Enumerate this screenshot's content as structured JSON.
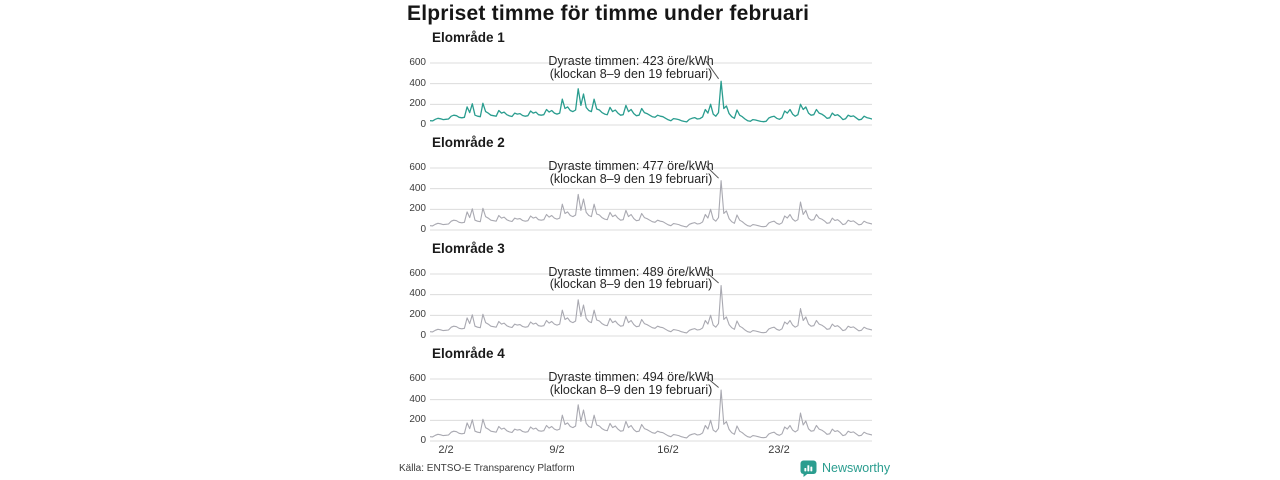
{
  "title": "Elpriset timme för timme under februari",
  "source": "Källa: ENTSO-E Transparency Platform",
  "brand": {
    "name": "Newsworthy",
    "color": "#2a9d8f"
  },
  "colors": {
    "background": "#ffffff",
    "teal_line": "#2a9d8f",
    "gray_line": "#a9a9b1",
    "grid": "#dcdcdc",
    "text": "#1a1a1a",
    "annotation_pointer": "#555555"
  },
  "axis": {
    "y_ticks": [
      "600",
      "400",
      "200",
      "0"
    ],
    "x_ticks": [
      "2/2",
      "9/2",
      "16/2",
      "23/2"
    ],
    "ylim": [
      0,
      600
    ],
    "x_range": "1 februari – 28 februari, timvärden",
    "grid": "horizontal only",
    "unit": "öre/kWh"
  },
  "chart_data": [
    {
      "type": "line",
      "name": "Elområde 1",
      "color": "#2a9d8f",
      "stroke_width": 1.3,
      "annotation_line1": "Dyraste timmen: 423 öre/kWh",
      "annotation_line2": "(klockan 8–9 den 19 februari)",
      "max_value": 423,
      "max_time": "klockan 8–9 den 19 februari",
      "unit": "öre/kWh",
      "sampling": "6 values per day (00,04,08,12,16,20), Feb 1–28",
      "values": [
        42,
        40,
        55,
        65,
        60,
        52,
        55,
        58,
        85,
        95,
        90,
        75,
        70,
        75,
        175,
        120,
        205,
        95,
        85,
        80,
        210,
        130,
        115,
        95,
        90,
        85,
        140,
        115,
        125,
        100,
        88,
        82,
        115,
        105,
        110,
        92,
        85,
        90,
        135,
        115,
        125,
        100,
        95,
        100,
        150,
        125,
        140,
        115,
        105,
        115,
        250,
        160,
        175,
        140,
        130,
        145,
        350,
        190,
        300,
        170,
        140,
        130,
        250,
        155,
        145,
        120,
        105,
        100,
        170,
        130,
        145,
        115,
        95,
        100,
        190,
        130,
        150,
        110,
        90,
        95,
        160,
        120,
        110,
        95,
        80,
        75,
        95,
        85,
        80,
        65,
        50,
        42,
        62,
        58,
        52,
        42,
        35,
        30,
        55,
        65,
        72,
        58,
        62,
        78,
        150,
        115,
        200,
        105,
        85,
        120,
        423,
        160,
        185,
        110,
        80,
        65,
        145,
        95,
        80,
        58,
        42,
        36,
        52,
        48,
        42,
        35,
        32,
        36,
        68,
        78,
        85,
        65,
        55,
        70,
        135,
        115,
        150,
        105,
        85,
        100,
        200,
        150,
        175,
        115,
        95,
        100,
        150,
        115,
        105,
        88,
        65,
        70,
        115,
        92,
        100,
        80,
        52,
        60,
        95,
        82,
        88,
        70,
        50,
        55,
        85,
        72,
        65,
        58
      ]
    },
    {
      "type": "line",
      "name": "Elområde 2",
      "color": "#a9a9b1",
      "stroke_width": 1.1,
      "annotation_line1": "Dyraste timmen: 477 öre/kWh",
      "annotation_line2": "(klockan 8–9 den 19 februari)",
      "max_value": 477,
      "max_time": "klockan 8–9 den 19 februari",
      "unit": "öre/kWh",
      "sampling": "6 values per day (00,04,08,12,16,20), Feb 1–28",
      "values": [
        42,
        40,
        55,
        65,
        60,
        52,
        55,
        58,
        85,
        95,
        90,
        75,
        70,
        75,
        175,
        120,
        205,
        95,
        85,
        80,
        210,
        130,
        115,
        95,
        90,
        85,
        140,
        115,
        125,
        100,
        88,
        82,
        115,
        105,
        110,
        92,
        85,
        90,
        135,
        115,
        125,
        100,
        95,
        100,
        150,
        125,
        140,
        115,
        105,
        115,
        250,
        160,
        175,
        140,
        130,
        145,
        345,
        190,
        300,
        170,
        140,
        130,
        250,
        155,
        145,
        120,
        105,
        100,
        170,
        130,
        145,
        115,
        95,
        100,
        190,
        130,
        150,
        110,
        90,
        95,
        160,
        120,
        110,
        95,
        80,
        75,
        95,
        85,
        80,
        65,
        50,
        42,
        62,
        58,
        52,
        42,
        35,
        30,
        55,
        65,
        72,
        58,
        62,
        78,
        150,
        115,
        200,
        105,
        85,
        120,
        477,
        160,
        185,
        110,
        80,
        65,
        145,
        95,
        80,
        58,
        42,
        36,
        52,
        48,
        42,
        35,
        32,
        36,
        68,
        78,
        85,
        65,
        55,
        70,
        135,
        115,
        150,
        105,
        85,
        100,
        270,
        150,
        190,
        115,
        95,
        100,
        150,
        115,
        105,
        88,
        65,
        70,
        115,
        92,
        100,
        80,
        52,
        60,
        95,
        82,
        88,
        70,
        50,
        55,
        85,
        72,
        65,
        58
      ]
    },
    {
      "type": "line",
      "name": "Elområde 3",
      "color": "#a9a9b1",
      "stroke_width": 1.1,
      "annotation_line1": "Dyraste timmen: 489 öre/kWh",
      "annotation_line2": "(klockan 8–9 den 19 februari)",
      "max_value": 489,
      "max_time": "klockan 8–9 den 19 februari",
      "unit": "öre/kWh",
      "sampling": "6 values per day (00,04,08,12,16,20), Feb 1–28",
      "values": [
        42,
        40,
        55,
        65,
        60,
        52,
        55,
        58,
        85,
        95,
        90,
        75,
        70,
        75,
        175,
        120,
        205,
        95,
        85,
        80,
        210,
        130,
        115,
        95,
        90,
        85,
        140,
        115,
        125,
        100,
        88,
        82,
        115,
        105,
        110,
        92,
        85,
        90,
        135,
        115,
        125,
        100,
        95,
        100,
        150,
        125,
        140,
        115,
        105,
        115,
        250,
        160,
        175,
        140,
        130,
        145,
        350,
        190,
        300,
        170,
        140,
        130,
        250,
        155,
        145,
        120,
        105,
        100,
        170,
        130,
        145,
        115,
        95,
        100,
        190,
        130,
        150,
        110,
        90,
        95,
        160,
        120,
        110,
        95,
        80,
        75,
        95,
        85,
        80,
        65,
        50,
        42,
        62,
        58,
        52,
        42,
        35,
        30,
        55,
        65,
        72,
        58,
        62,
        78,
        150,
        115,
        200,
        105,
        85,
        120,
        489,
        160,
        185,
        110,
        80,
        65,
        145,
        95,
        80,
        58,
        42,
        36,
        52,
        48,
        42,
        35,
        32,
        36,
        68,
        78,
        85,
        65,
        55,
        70,
        135,
        115,
        150,
        105,
        85,
        100,
        265,
        150,
        185,
        115,
        95,
        100,
        150,
        115,
        105,
        88,
        65,
        70,
        115,
        92,
        100,
        80,
        52,
        60,
        95,
        82,
        88,
        70,
        50,
        55,
        85,
        72,
        65,
        58
      ]
    },
    {
      "type": "line",
      "name": "Elområde 4",
      "color": "#a9a9b1",
      "stroke_width": 1.1,
      "annotation_line1": "Dyraste timmen: 494 öre/kWh",
      "annotation_line2": "(klockan 8–9 den 19 februari)",
      "max_value": 494,
      "max_time": "klockan 8–9 den 19 februari",
      "unit": "öre/kWh",
      "sampling": "6 values per day (00,04,08,12,16,20), Feb 1–28",
      "values": [
        42,
        40,
        55,
        65,
        60,
        52,
        55,
        58,
        85,
        95,
        90,
        75,
        70,
        75,
        175,
        120,
        205,
        95,
        85,
        80,
        210,
        130,
        115,
        95,
        90,
        85,
        140,
        115,
        125,
        100,
        88,
        82,
        115,
        105,
        110,
        92,
        85,
        90,
        135,
        115,
        125,
        100,
        95,
        100,
        150,
        125,
        140,
        115,
        105,
        115,
        250,
        160,
        175,
        140,
        130,
        145,
        350,
        190,
        300,
        170,
        140,
        130,
        250,
        155,
        145,
        120,
        105,
        100,
        170,
        130,
        145,
        115,
        95,
        100,
        190,
        130,
        150,
        110,
        90,
        95,
        160,
        120,
        110,
        95,
        80,
        75,
        95,
        85,
        80,
        65,
        50,
        42,
        62,
        58,
        52,
        42,
        35,
        30,
        55,
        65,
        72,
        58,
        62,
        78,
        150,
        115,
        200,
        105,
        88,
        122,
        494,
        162,
        188,
        112,
        80,
        65,
        145,
        95,
        80,
        58,
        42,
        36,
        52,
        48,
        42,
        35,
        32,
        36,
        68,
        78,
        85,
        65,
        55,
        70,
        135,
        115,
        150,
        105,
        88,
        105,
        270,
        155,
        195,
        118,
        95,
        100,
        150,
        115,
        105,
        88,
        65,
        70,
        115,
        92,
        100,
        80,
        52,
        60,
        95,
        82,
        88,
        70,
        50,
        55,
        85,
        72,
        65,
        58
      ]
    }
  ]
}
